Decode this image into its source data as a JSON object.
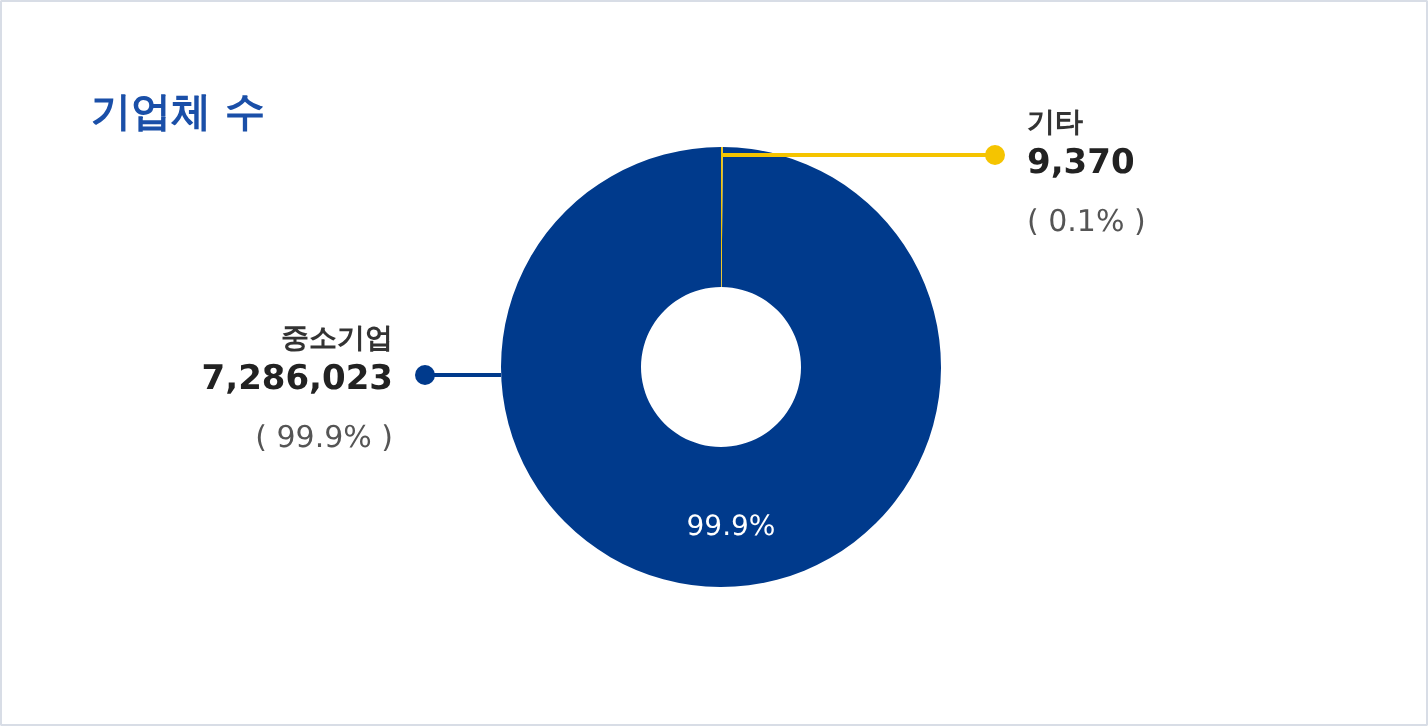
{
  "chart_data": {
    "type": "donut",
    "title": "기업체 수",
    "categories": [
      "중소기업",
      "기타"
    ],
    "values": [
      7286023,
      9370
    ],
    "colors": [
      "#003a8c",
      "#f5c400"
    ],
    "value_labels": [
      "7,286,023",
      "9,370"
    ],
    "annotations": [
      "( 99.9% )",
      "( 0.1% )",
      "99.9%"
    ]
  }
}
